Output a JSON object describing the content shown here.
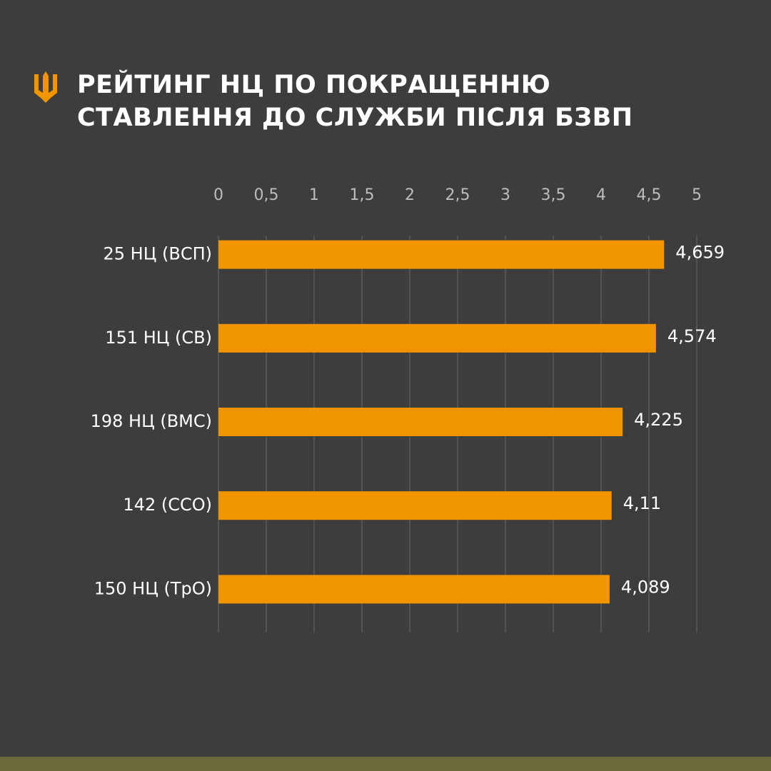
{
  "chart_data": {
    "type": "bar",
    "orientation": "horizontal",
    "title": "РЕЙТИНГ НЦ ПО ПОКРАЩЕННЮ СТАВЛЕННЯ ДО СЛУЖБИ ПІСЛЯ БЗВП",
    "categories": [
      "25 НЦ (ВСП)",
      "151 НЦ (СВ)",
      "198 НЦ (ВМС)",
      "142 (ССО)",
      "150 НЦ (ТрО)"
    ],
    "values": [
      4.659,
      4.574,
      4.225,
      4.11,
      4.089
    ],
    "value_labels": [
      "4,659",
      "4,574",
      "4,225",
      "4,11",
      "4,089"
    ],
    "color": "#f09400",
    "xlim": [
      0,
      5
    ],
    "xticks": [
      0,
      {
        "value": 0.5,
        "label": "0,5"
      },
      1,
      {
        "value": 1.5,
        "label": "1,5"
      },
      2,
      {
        "value": 2.5,
        "label": "2,5"
      },
      3,
      {
        "value": 3.5,
        "label": "3,5"
      },
      4,
      {
        "value": 4.5,
        "label": "4,5"
      },
      5
    ],
    "grid": true
  }
}
